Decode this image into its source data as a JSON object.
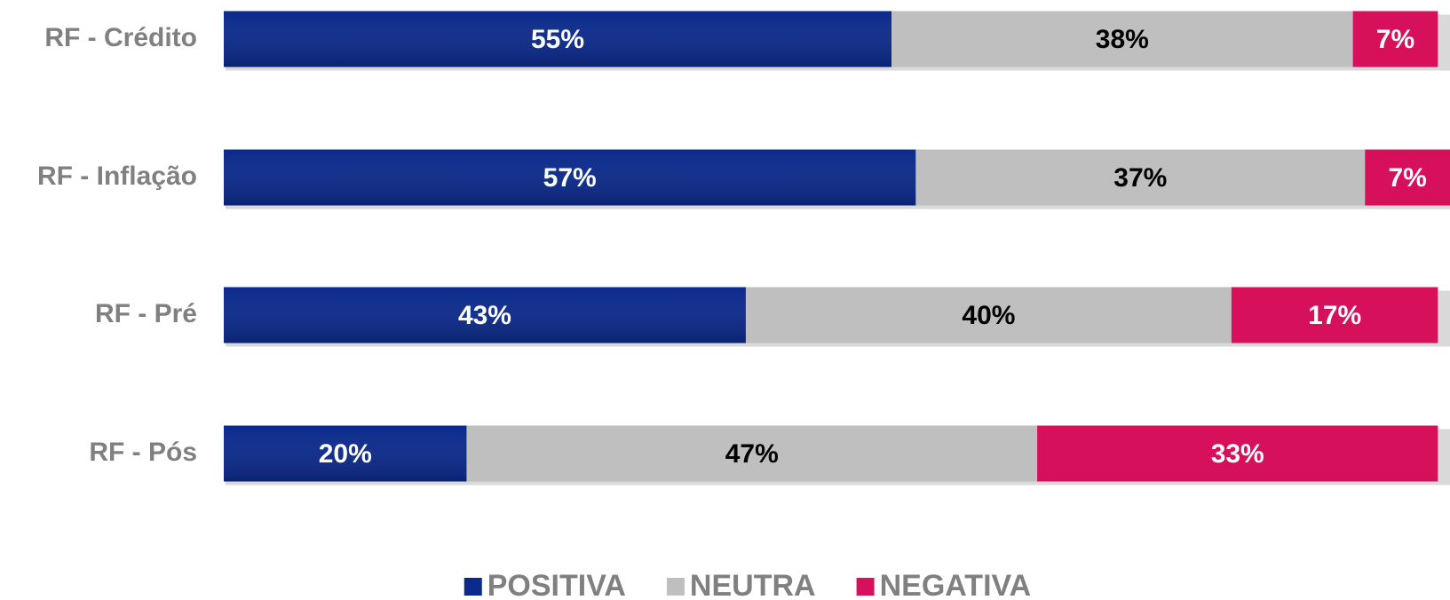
{
  "chart_data": {
    "type": "stacked-bar-horizontal",
    "categories": [
      "RF - Crédito",
      "RF - Inflação",
      "RF - Pré",
      "RF - Pós"
    ],
    "series": [
      {
        "name": "POSITIVA",
        "color": "#0b2a8c",
        "values": [
          55,
          57,
          43,
          20
        ],
        "value_labels": [
          "55%",
          "57%",
          "43%",
          "20%"
        ]
      },
      {
        "name": "NEUTRA",
        "color": "#bfbfbf",
        "values": [
          38,
          37,
          40,
          47
        ],
        "value_labels": [
          "38%",
          "37%",
          "40%",
          "47%"
        ]
      },
      {
        "name": "NEGATIVA",
        "color": "#d6105a",
        "values": [
          7,
          7,
          17,
          33
        ],
        "value_labels": [
          "7%",
          "7%",
          "17%",
          "33%"
        ]
      }
    ],
    "legend": "bottom"
  }
}
